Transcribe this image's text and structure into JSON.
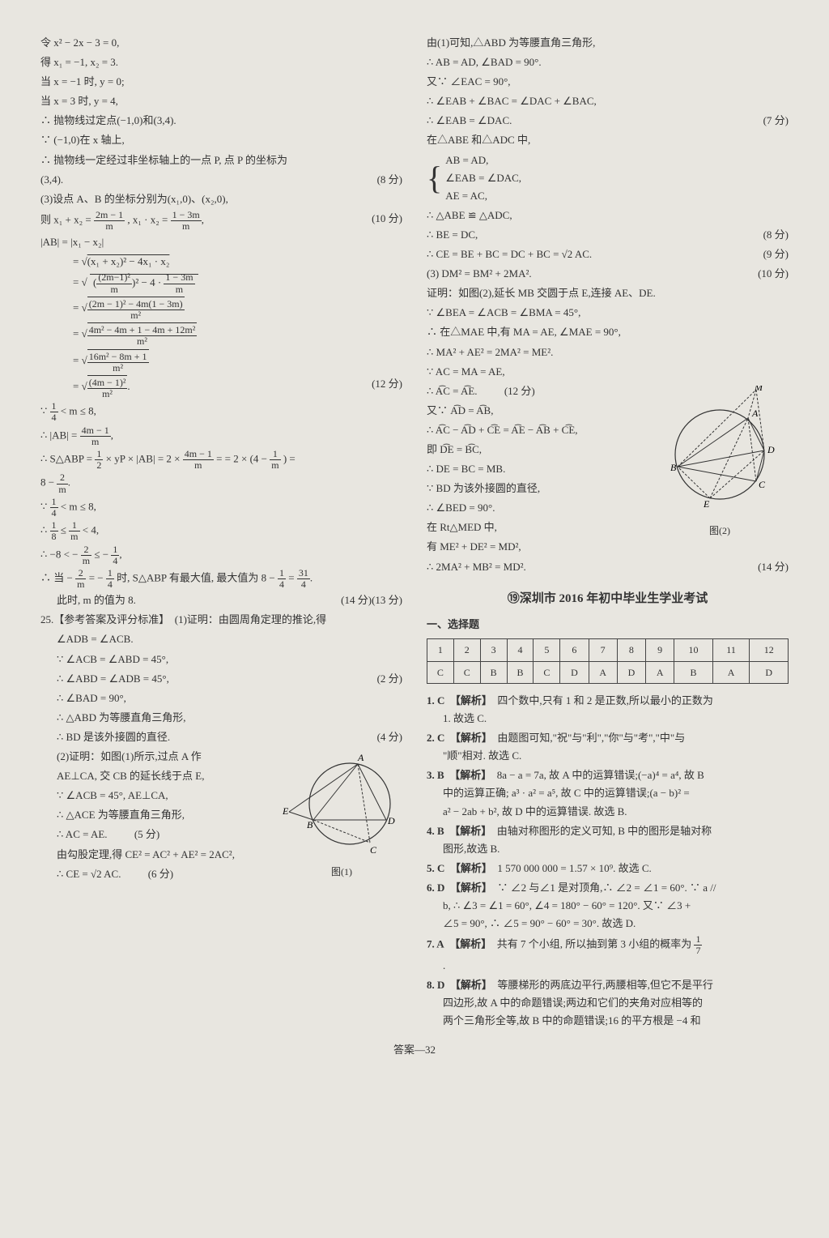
{
  "footer": "答案—32",
  "left": {
    "lines": [
      "令 x² − 2x − 3 = 0,",
      "得 x₁ = −1, x₂ = 3.",
      "当 x = −1 时, y = 0;",
      "当 x = 3 时, y = 4,",
      "∴ 抛物线过定点(−1,0)和(3,4).",
      "∵ (−1,0)在 x 轴上,",
      "∴ 抛物线一定经过非坐标轴上的一点 P, 点 P 的坐标为",
      "(3,4).",
      "(3)设点 A、B 的坐标分别为(x₁,0)、(x₂,0),"
    ],
    "score1": "(8 分)",
    "sum_prod": {
      "pre": "则 x₁ + x₂ = ",
      "n1": "2m − 1",
      "d1": "m",
      "mid": ", x₁ · x₂ = ",
      "n2": "1 − 3m",
      "d2": "m",
      "score": "(10 分)"
    },
    "abs": "|AB| = |x₁ − x₂|",
    "sqrt_lines": [
      {
        "pre": "= √",
        "body": "(x₁ + x₂)² − 4x₁ · x₂",
        "frac": false
      },
      {
        "pre": "= √",
        "n": "(2m−1)²",
        "d": "m",
        "tail": " − 4 · ",
        "n2": "1 − 3m",
        "d2": "m"
      },
      {
        "pre": "= √",
        "n": "(2m − 1)² − 4m(1 − 3m)",
        "d": "m²"
      },
      {
        "pre": "= √",
        "n": "4m² − 4m + 1 − 4m + 12m²",
        "d": "m²"
      },
      {
        "pre": "= √",
        "n": "16m² − 8m + 1",
        "d": "m²"
      },
      {
        "pre": "= √",
        "n": "(4m − 1)²",
        "d": "m²",
        "score": "(12 分)"
      }
    ],
    "cond1": {
      "pre": "∵ ",
      "n": "1",
      "d": "4",
      "tail": " < m ≤ 8,"
    },
    "ab_eq": {
      "pre": "∴ |AB| = ",
      "n": "4m − 1",
      "d": "m",
      "tail": ","
    },
    "sabp": {
      "pre": "∴ S△ABP = ",
      "n1": "1",
      "d1": "2",
      "mid": " × yP × |AB| = 2 × ",
      "n2": "4m − 1",
      "d2": "m",
      "tail": " = = 2 × (4 − ",
      "n3": "1",
      "d3": "m",
      "end": " ) ="
    },
    "eight": {
      "pre": "8 − ",
      "n": "2",
      "d": "m",
      "tail": "."
    },
    "cond2": {
      "pre": "∵ ",
      "n": "1",
      "d": "4",
      "tail": " < m ≤ 8,"
    },
    "cond3": {
      "pre": "∴ ",
      "n1": "1",
      "d1": "8",
      "mid": " ≤ ",
      "n2": "1",
      "d2": "m",
      "tail": " < 4,"
    },
    "cond4": {
      "pre": "∴ −8 < − ",
      "n": "2",
      "d": "m",
      "mid": " ≤ − ",
      "n2": "1",
      "d2": "4",
      "tail": ","
    },
    "cond5": {
      "pre": "∴ 当 − ",
      "n": "2",
      "d": "m",
      "mid": " = − ",
      "n2": "1",
      "d2": "4",
      "mid2": " 时, S△ABP 有最大值, 最大值为 8 − ",
      "n3": "1",
      "d3": "4",
      "eq": " = ",
      "n4": "31",
      "d4": "4",
      "tail": "."
    },
    "score13": "(13 分)",
    "mval": "此时, m 的值为 8.",
    "score14": "(14 分)",
    "q25": {
      "head": "25.【参考答案及评分标准】　(1)证明：由圆周角定理的推论,得",
      "lines": [
        "∠ADB = ∠ACB.",
        "∵ ∠ACB = ∠ABD = 45°,",
        "∴ ∠ABD = ∠ADB = 45°,",
        "∴ ∠BAD = 90°,",
        "∴ △ABD 为等腰直角三角形,",
        "∴ BD 是该外接圆的直径."
      ],
      "score2": "(2 分)",
      "score4": "(4 分)",
      "p2": "(2)证明：如图(1)所示,过点 A 作",
      "p2b": "AE⊥CA, 交 CB 的延长线于点 E,",
      "p2c": "∵ ∠ACB = 45°, AE⊥CA,",
      "p2d": "∴ △ACE 为等腰直角三角形,",
      "p2e": "∴ AC = AE.",
      "score5": "(5 分)",
      "p2f": "由勾股定理,得 CE² = AC² + AE² = 2AC²,",
      "p2g": "∴ CE = √2 AC.",
      "score6": "(6 分)",
      "figcap": "图(1)"
    }
  },
  "right": {
    "lines1": [
      "由(1)可知,△ABD 为等腰直角三角形,",
      "∴ AB = AD, ∠BAD = 90°.",
      "又∵ ∠EAC = 90°,",
      "∴ ∠EAB + ∠BAC = ∠DAC + ∠BAC,",
      "∴ ∠EAB = ∠DAC.",
      "在△ABE 和△ADC 中,"
    ],
    "score7": "(7 分)",
    "brace": [
      "AB = AD,",
      "∠EAB = ∠DAC,",
      "AE = AC,"
    ],
    "lines2": [
      "∴ △ABE ≌ △ADC,",
      "∴ BE = DC,",
      "∴ CE = BE + BC = DC + BC = √2 AC.",
      "(3) DM² = BM² + 2MA²."
    ],
    "score8": "(8 分)",
    "score9": "(9 分)",
    "score10": "(10 分)",
    "proof2": [
      "证明：如图(2),延长 MB 交圆于点 E,连接 AE、DE.",
      "∵ ∠BEA = ∠ACB = ∠BMA = 45°,",
      "∴ 在△MAE 中,有 MA = AE, ∠MAE = 90°,",
      "∴ MA² + AE² = 2MA² = ME².",
      "∵ AC = MA = AE,",
      "∴ A͡C = A͡E.",
      "又∵ A͡D = A͡B,",
      "∴ A͡C − A͡D + C͡E = A͡E − A͡B + C͡E,",
      "即 D͡E = B͡C,",
      "∴ DE = BC = MB.",
      "∵ BD 为该外接圆的直径,",
      "∴ ∠BED = 90°.",
      "在 Rt△MED 中,",
      "有 ME² + DE² = MD²,",
      "∴ 2MA² + MB² = MD²."
    ],
    "score12": "(12 分)",
    "score14": "(14 分)",
    "figcap2": "图(2)",
    "exam_title": "⑲深圳市 2016 年初中毕业生学业考试",
    "sect": "一、选择题",
    "table": {
      "nums": [
        "1",
        "2",
        "3",
        "4",
        "5",
        "6",
        "7",
        "8",
        "9",
        "10",
        "11",
        "12"
      ],
      "ans": [
        "C",
        "C",
        "B",
        "B",
        "C",
        "D",
        "A",
        "D",
        "A",
        "B",
        "A",
        "D"
      ]
    },
    "analyses": [
      {
        "n": "1. C",
        "head": "【解析】",
        "t": "四个数中,只有 1 和 2 是正数,所以最小的正数为",
        "t2": "1. 故选 C."
      },
      {
        "n": "2. C",
        "head": "【解析】",
        "t": "由题图可知,\"祝\"与\"利\",\"你\"与\"考\",\"中\"与",
        "t2": "\"顺\"相对. 故选 C."
      },
      {
        "n": "3. B",
        "head": "【解析】",
        "t": "8a − a = 7a, 故 A 中的运算错误;(−a)⁴ = a⁴, 故 B",
        "t2": "中的运算正确; a³ · a² = a⁵, 故 C 中的运算错误;(a − b)² =",
        "t3": "a² − 2ab + b², 故 D 中的运算错误. 故选 B."
      },
      {
        "n": "4. B",
        "head": "【解析】",
        "t": "由轴对称图形的定义可知, B 中的图形是轴对称",
        "t2": "图形,故选 B."
      },
      {
        "n": "5. C",
        "head": "【解析】",
        "t": "1 570 000 000 = 1.57 × 10⁹. 故选 C."
      },
      {
        "n": "6. D",
        "head": "【解析】",
        "t": "∵ ∠2 与∠1 是对顶角,∴ ∠2 = ∠1 = 60°. ∵ a //",
        "t2": "b, ∴ ∠3 = ∠1 = 60°, ∠4 = 180° − 60° = 120°. 又∵ ∠3 +",
        "t3": "∠5 = 90°, ∴ ∠5 = 90° − 60° = 30°. 故选 D."
      },
      {
        "n": "7. A",
        "head": "【解析】",
        "t": "共有 7 个小组, 所以抽到第 3 小组的概率为 ",
        "frac_n": "1",
        "frac_d": "7",
        "t2": "."
      },
      {
        "n": "8. D",
        "head": "【解析】",
        "t": "等腰梯形的两底边平行,两腰相等,但它不是平行",
        "t2": "四边形,故 A 中的命题错误;两边和它们的夹角对应相等的",
        "t3": "两个三角形全等,故 B 中的命题错误;16 的平方根是 −4 和"
      }
    ]
  }
}
